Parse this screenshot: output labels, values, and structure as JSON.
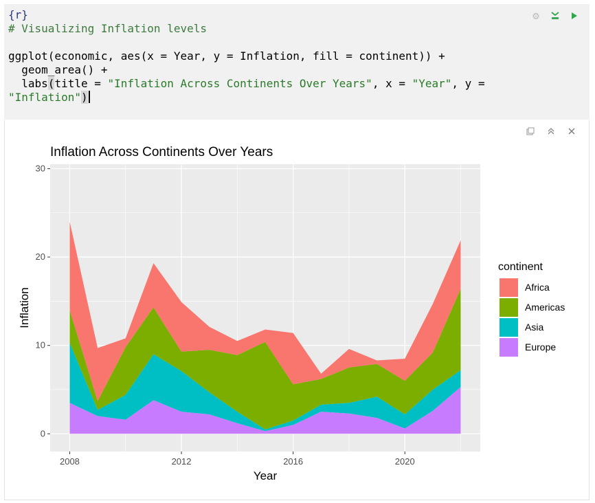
{
  "editor": {
    "chunk_header": "{r}",
    "comment": "# Visualizing Inflation levels",
    "line3": "ggplot(economic, aes(x = Year, y = Inflation, fill = continent)) +",
    "line4": "  geom_area() +",
    "line5_a": "  labs",
    "line5_b": "(",
    "line5_c": "title = ",
    "line5_title": "\"Inflation Across Continents Over Years\"",
    "line5_d": ", x = ",
    "line5_x": "\"Year\"",
    "line5_e": ", y = ",
    "line6_a": "\"Inflation\"",
    "line6_b": ")"
  },
  "chunk_toolbar": {
    "settings_icon": "gear-icon",
    "run_above_icon": "run-all-above-icon",
    "run_icon": "play-icon"
  },
  "output_toolbar": {
    "icons": [
      "expand-window-icon",
      "collapse-icon",
      "close-icon"
    ]
  },
  "colors": {
    "panel": "#ebebeb",
    "gridline": "#ffffff",
    "Africa": "#f8766d",
    "Americas": "#7cae00",
    "Asia": "#00bfc4",
    "Europe": "#c77cff"
  },
  "chart_data": {
    "type": "area",
    "stacked": true,
    "title": "Inflation Across Continents Over Years",
    "xlabel": "Year",
    "ylabel": "Inflation",
    "xlim": [
      2007.3,
      2022.7
    ],
    "ylim": [
      -2,
      30.5
    ],
    "xticks": [
      2008,
      2012,
      2016,
      2020
    ],
    "yticks": [
      0,
      10,
      20,
      30
    ],
    "grid": true,
    "legend_title": "continent",
    "legend_position": "right",
    "x": [
      2008,
      2009,
      2010,
      2011,
      2012,
      2013,
      2014,
      2015,
      2016,
      2017,
      2018,
      2019,
      2020,
      2021,
      2022
    ],
    "series": [
      {
        "name": "Europe",
        "values": [
          3.5,
          2.0,
          1.6,
          3.8,
          2.5,
          2.2,
          1.2,
          0.3,
          1.0,
          2.5,
          2.3,
          1.8,
          0.6,
          2.6,
          5.3
        ]
      },
      {
        "name": "Asia",
        "values": [
          6.8,
          0.7,
          2.8,
          5.2,
          4.6,
          2.5,
          1.3,
          0.2,
          0.5,
          0.8,
          1.2,
          2.4,
          1.6,
          2.4,
          1.9
        ]
      },
      {
        "name": "Americas",
        "values": [
          3.7,
          1.0,
          5.4,
          5.3,
          2.2,
          4.8,
          6.4,
          9.9,
          4.1,
          2.9,
          4.0,
          3.7,
          3.8,
          4.2,
          9.2
        ]
      },
      {
        "name": "Africa",
        "values": [
          10.0,
          6.0,
          1.0,
          5.0,
          5.6,
          2.6,
          1.6,
          1.4,
          5.8,
          0.6,
          2.1,
          0.4,
          2.5,
          5.5,
          5.5
        ]
      }
    ]
  }
}
